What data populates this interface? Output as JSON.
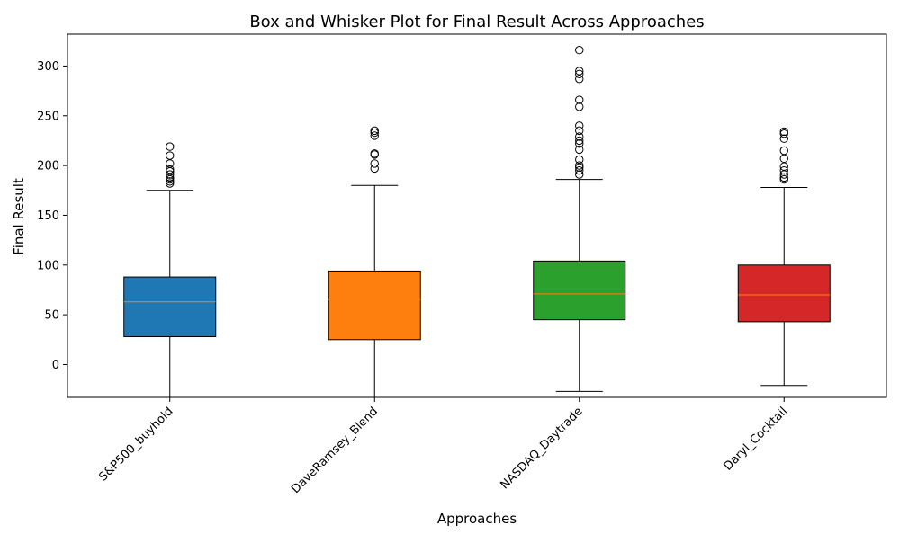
{
  "chart_data": {
    "type": "box",
    "title": "Box and Whisker Plot for Final Result Across Approaches",
    "xlabel": "Approaches",
    "ylabel": "Final Result",
    "ylim": [
      -33,
      332
    ],
    "yticks": [
      0,
      50,
      100,
      150,
      200,
      250,
      300
    ],
    "grid": false,
    "categories": [
      "S&P500_buyhold",
      "DaveRamsey_Blend",
      "NASDAQ_Daytrade",
      "Daryl_Cocktail"
    ],
    "boxes": [
      {
        "category": "S&P500_buyhold",
        "color": "#1f77b4",
        "whisker_low": -40,
        "q1": 28,
        "median": 63,
        "q3": 88,
        "whisker_high": 175,
        "outliers": [
          182,
          184,
          186,
          188,
          191,
          194,
          196,
          202,
          210,
          219
        ]
      },
      {
        "category": "DaveRamsey_Blend",
        "color": "#ff7f0e",
        "whisker_low": -33,
        "q1": 25,
        "median": 65,
        "q3": 94,
        "whisker_high": 180,
        "outliers": [
          197,
          202,
          211,
          212,
          230,
          233,
          235
        ]
      },
      {
        "category": "NASDAQ_Daytrade",
        "color": "#2ca02c",
        "whisker_low": -27,
        "q1": 45,
        "median": 71,
        "q3": 104,
        "whisker_high": 186,
        "outliers": [
          191,
          195,
          198,
          200,
          206,
          216,
          222,
          225,
          229,
          235,
          240,
          259,
          266,
          287,
          292,
          295,
          316
        ]
      },
      {
        "category": "Daryl_Cocktail",
        "color": "#d62728",
        "whisker_low": -21,
        "q1": 43,
        "median": 70,
        "q3": 100,
        "whisker_high": 178,
        "outliers": [
          186,
          188,
          191,
          195,
          199,
          207,
          215,
          227,
          232,
          234
        ]
      }
    ],
    "median_color": "#ff7f0e"
  }
}
